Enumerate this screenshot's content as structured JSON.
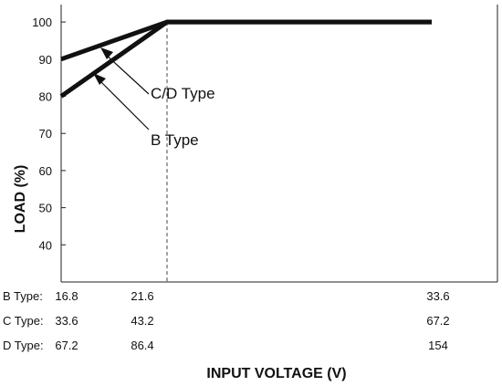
{
  "chart_data": {
    "type": "line",
    "xlabel": "INPUT VOLTAGE (V)",
    "ylabel": "LOAD (%)",
    "ylim": [
      35,
      105
    ],
    "yticks": [
      40,
      50,
      60,
      70,
      80,
      90,
      100
    ],
    "xlim": [
      16.8,
      33.6
    ],
    "grid": false,
    "x_axis_rows": [
      {
        "label": "B Type:",
        "values": [
          "16.8",
          "21.6",
          "33.6"
        ]
      },
      {
        "label": "C Type:",
        "values": [
          "33.6",
          "43.2",
          "67.2"
        ]
      },
      {
        "label": "D Type:",
        "values": [
          "67.2",
          "86.4",
          "154"
        ]
      }
    ],
    "series": [
      {
        "name": "B Type",
        "x": [
          16.8,
          21.6,
          33.6
        ],
        "y": [
          80,
          100,
          100
        ]
      },
      {
        "name": "C/D Type",
        "x": [
          16.8,
          21.6,
          33.6
        ],
        "y": [
          90,
          100,
          100
        ]
      }
    ],
    "reference_line_x": 21.6
  }
}
